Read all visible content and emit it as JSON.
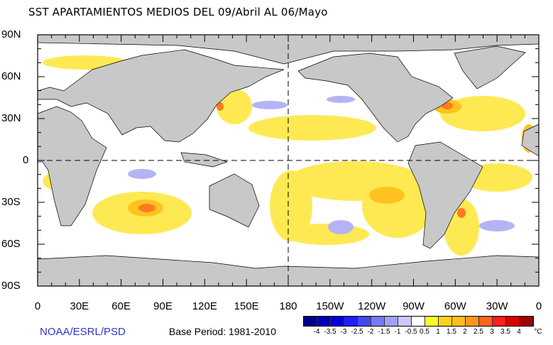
{
  "title": "SST APARTAMIENTOS MEDIOS DEL 09/Abril AL 06/Mayo",
  "lat_labels": [
    "90N",
    "60N",
    "30N",
    "0",
    "30S",
    "60S",
    "90S"
  ],
  "lon_labels": [
    "0",
    "30E",
    "60E",
    "90E",
    "120E",
    "150E",
    "180",
    "150W",
    "120W",
    "90W",
    "60W",
    "30W",
    "0"
  ],
  "credit": "NOAA/ESRL/PSD",
  "base_period": "Base Period: 1981-2010",
  "colorbar": {
    "colors": [
      "#00008c",
      "#0000b4",
      "#0000e0",
      "#1e1eff",
      "#4646f0",
      "#7878f0",
      "#a0a0f5",
      "#c8c8fa",
      "#ffffff",
      "#ffff28",
      "#ffd21e",
      "#ffbe1e",
      "#ff961e",
      "#ff641e",
      "#ff1e1e",
      "#dc0000",
      "#a00000"
    ],
    "labels": [
      "-4",
      "-3.5",
      "-3",
      "-2.5",
      "-2",
      "-1.5",
      "-1",
      "-0.5",
      "0.5",
      "1",
      "1.5",
      "2",
      "2.5",
      "3",
      "3.5",
      "4"
    ],
    "unit": "°C"
  },
  "land_color": "#c8c8c8"
}
